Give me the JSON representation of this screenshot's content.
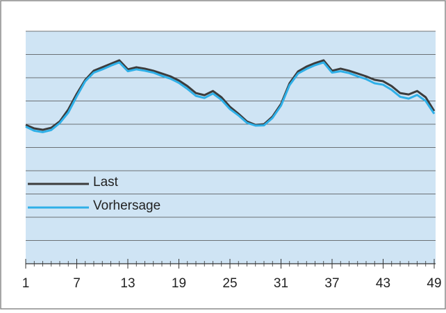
{
  "chart_data": {
    "type": "line",
    "x": [
      1,
      2,
      3,
      4,
      5,
      6,
      7,
      8,
      9,
      10,
      11,
      12,
      13,
      14,
      15,
      16,
      17,
      18,
      19,
      20,
      21,
      22,
      23,
      24,
      25,
      26,
      27,
      28,
      29,
      30,
      31,
      32,
      33,
      34,
      35,
      36,
      37,
      38,
      39,
      40,
      41,
      42,
      43,
      44,
      45,
      46,
      47,
      48,
      49
    ],
    "series": [
      {
        "name": "Last",
        "color": "#3c3c3c",
        "values": [
          5.97,
          5.82,
          5.76,
          5.85,
          6.12,
          6.63,
          7.31,
          7.91,
          8.3,
          8.45,
          8.6,
          8.75,
          8.36,
          8.45,
          8.39,
          8.3,
          8.18,
          8.06,
          7.88,
          7.64,
          7.34,
          7.25,
          7.43,
          7.16,
          6.75,
          6.45,
          6.12,
          5.97,
          6.0,
          6.33,
          6.87,
          7.76,
          8.27,
          8.48,
          8.63,
          8.75,
          8.3,
          8.39,
          8.3,
          8.18,
          8.06,
          7.91,
          7.85,
          7.64,
          7.34,
          7.28,
          7.43,
          7.16,
          6.57
        ]
      },
      {
        "name": "Vorhersage",
        "color": "#2fb0e8",
        "values": [
          5.9,
          5.72,
          5.66,
          5.75,
          6.05,
          6.5,
          7.2,
          7.85,
          8.22,
          8.36,
          8.52,
          8.66,
          8.28,
          8.36,
          8.3,
          8.22,
          8.08,
          7.96,
          7.78,
          7.52,
          7.22,
          7.13,
          7.32,
          7.05,
          6.65,
          6.38,
          6.06,
          5.94,
          5.95,
          6.27,
          6.8,
          7.68,
          8.18,
          8.38,
          8.54,
          8.66,
          8.22,
          8.28,
          8.2,
          8.06,
          7.94,
          7.76,
          7.7,
          7.48,
          7.18,
          7.1,
          7.26,
          7.0,
          6.45
        ]
      }
    ],
    "xlim": [
      1,
      49
    ],
    "xticks": [
      1,
      7,
      13,
      19,
      25,
      31,
      37,
      43,
      49
    ],
    "ylim": [
      0,
      10
    ],
    "yticks": [
      0,
      1,
      2,
      3,
      4,
      5,
      6,
      7,
      8,
      9,
      10
    ],
    "grid": true,
    "legend": "lower left"
  }
}
